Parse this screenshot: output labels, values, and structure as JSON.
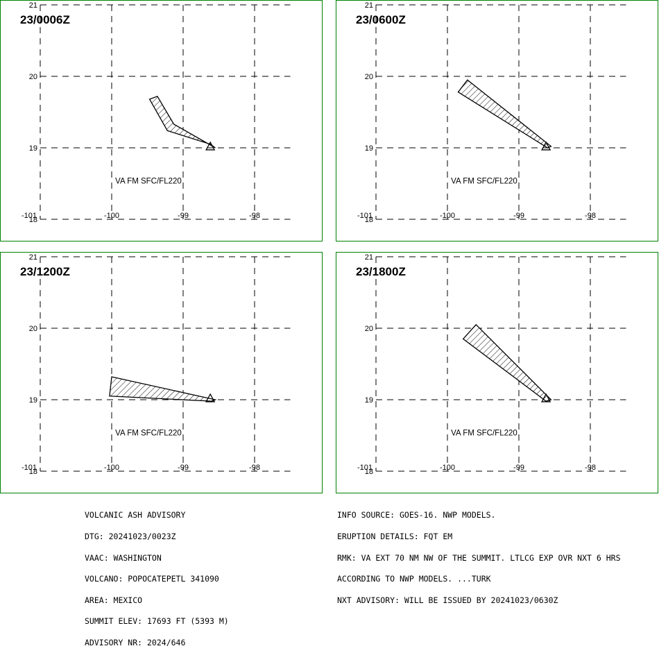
{
  "panels": [
    {
      "title": "23/0006Z",
      "label": "VA FM SFC/FL220",
      "polygon": [
        [
          -99.47,
          19.68
        ],
        [
          -99.36,
          19.72
        ],
        [
          -99.13,
          19.33
        ],
        [
          -98.55,
          19.0
        ],
        [
          -98.62,
          19.05
        ],
        [
          -99.22,
          19.24
        ]
      ]
    },
    {
      "title": "23/0600Z",
      "label": "VA FM SFC/FL220",
      "polygon": [
        [
          -99.85,
          19.78
        ],
        [
          -99.72,
          19.95
        ],
        [
          -98.55,
          19.02
        ],
        [
          -98.6,
          19.0
        ]
      ]
    },
    {
      "title": "23/1200Z",
      "label": "VA FM SFC/FL220",
      "polygon": [
        [
          -100.0,
          19.32
        ],
        [
          -98.55,
          19.0
        ],
        [
          -98.6,
          18.98
        ],
        [
          -100.03,
          19.05
        ]
      ]
    },
    {
      "title": "23/1800Z",
      "label": "VA FM SFC/FL220",
      "polygon": [
        [
          -99.78,
          19.85
        ],
        [
          -99.6,
          20.05
        ],
        [
          -98.55,
          19.0
        ],
        [
          -98.62,
          18.98
        ]
      ]
    }
  ],
  "map": {
    "lon_ticks": [
      "-101",
      "-100",
      "-99",
      "-98"
    ],
    "lat_ticks": [
      "21",
      "20",
      "19",
      "18"
    ],
    "lon_range": [
      -101,
      -97.5
    ],
    "lat_range": [
      18,
      21
    ],
    "volcano": {
      "lon": -98.62,
      "lat": 19.02
    }
  },
  "advisory_left": [
    "VOLCANIC ASH ADVISORY",
    "DTG: 20241023/0023Z",
    "VAAC: WASHINGTON",
    "VOLCANO: POPOCATEPETL 341090",
    "AREA: MEXICO",
    "SUMMIT ELEV: 17693 FT (5393 M)",
    "ADVISORY NR: 2024/646"
  ],
  "advisory_right": [
    "INFO SOURCE: GOES-16. NWP MODELS.",
    "ERUPTION DETAILS: FQT EM",
    "RMK: VA EXT 70 NM NW OF THE SUMMIT. LTLCG EXP OVR NXT 6 HRS",
    "ACCORDING TO NWP MODELS. ...TURK",
    "NXT ADVISORY: WILL BE ISSUED BY 20241023/0630Z"
  ],
  "colors": {
    "border": "#008000",
    "grid": "#000000",
    "ash_outline": "#000000"
  }
}
